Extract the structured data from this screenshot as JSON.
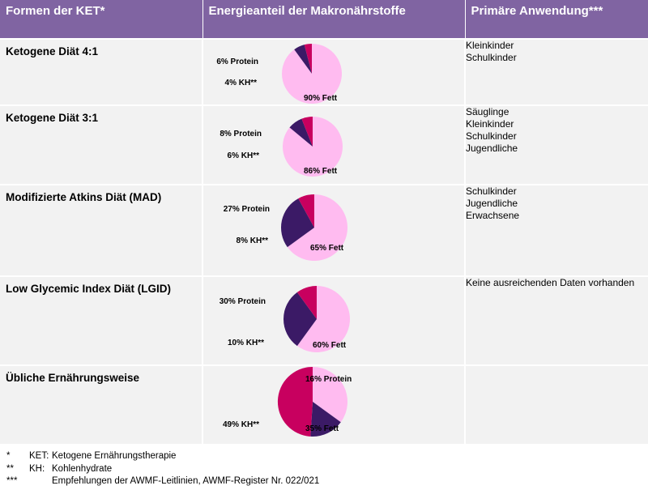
{
  "header": {
    "col1": "Formen der KET*",
    "col2": "Energieanteil der Makronährstoffe",
    "col3": "Primäre Anwendung***"
  },
  "colors": {
    "header_bg": "#8064a2",
    "row_bg": "#f2f2f2",
    "fett": "#ffbbf0",
    "protein": "#3b1a66",
    "kh": "#c8005f"
  },
  "rows": [
    {
      "name": "Ketogene Diät 4:1",
      "uses": [
        "Kleinkinder",
        "Schulkinder"
      ]
    },
    {
      "name": "Ketogene Diät 3:1",
      "uses": [
        "Säuglinge",
        "Kleinkinder",
        "Schulkinder",
        "Jugendliche"
      ]
    },
    {
      "name": "Modifizierte Atkins Diät (MAD)",
      "uses": [
        "Schulkinder",
        "Jugendliche",
        "Erwachsene"
      ]
    },
    {
      "name": "Low Glycemic Index Diät (LGID)",
      "uses": [
        "Keine ausreichenden Daten vorhanden"
      ]
    },
    {
      "name": "Übliche Ernährungsweise",
      "uses": []
    }
  ],
  "chart_data": [
    {
      "type": "pie",
      "slices": [
        {
          "label": "90% Fett",
          "value": 90
        },
        {
          "label": "6% Protein",
          "value": 6
        },
        {
          "label": "4% KH**",
          "value": 4
        }
      ]
    },
    {
      "type": "pie",
      "slices": [
        {
          "label": "86% Fett",
          "value": 86
        },
        {
          "label": "8% Protein",
          "value": 8
        },
        {
          "label": "6% KH**",
          "value": 6
        }
      ]
    },
    {
      "type": "pie",
      "slices": [
        {
          "label": "65% Fett",
          "value": 65
        },
        {
          "label": "27% Protein",
          "value": 27
        },
        {
          "label": "8% KH**",
          "value": 8
        }
      ]
    },
    {
      "type": "pie",
      "slices": [
        {
          "label": "60% Fett",
          "value": 60
        },
        {
          "label": "30% Protein",
          "value": 30
        },
        {
          "label": "10% KH**",
          "value": 10
        }
      ]
    },
    {
      "type": "pie",
      "slices": [
        {
          "label": "35% Fett",
          "value": 35
        },
        {
          "label": "16% Protein",
          "value": 16
        },
        {
          "label": "49% KH**",
          "value": 49
        }
      ]
    }
  ],
  "footnotes": [
    {
      "mark": "*",
      "abbr": "KET:",
      "text": "Ketogene Ernährungstherapie"
    },
    {
      "mark": "**",
      "abbr": "KH:",
      "text": "Kohlenhydrate"
    },
    {
      "mark": "***",
      "abbr": "",
      "text": "Empfehlungen der AWMF-Leitlinien, AWMF-Register Nr. 022/021"
    }
  ]
}
